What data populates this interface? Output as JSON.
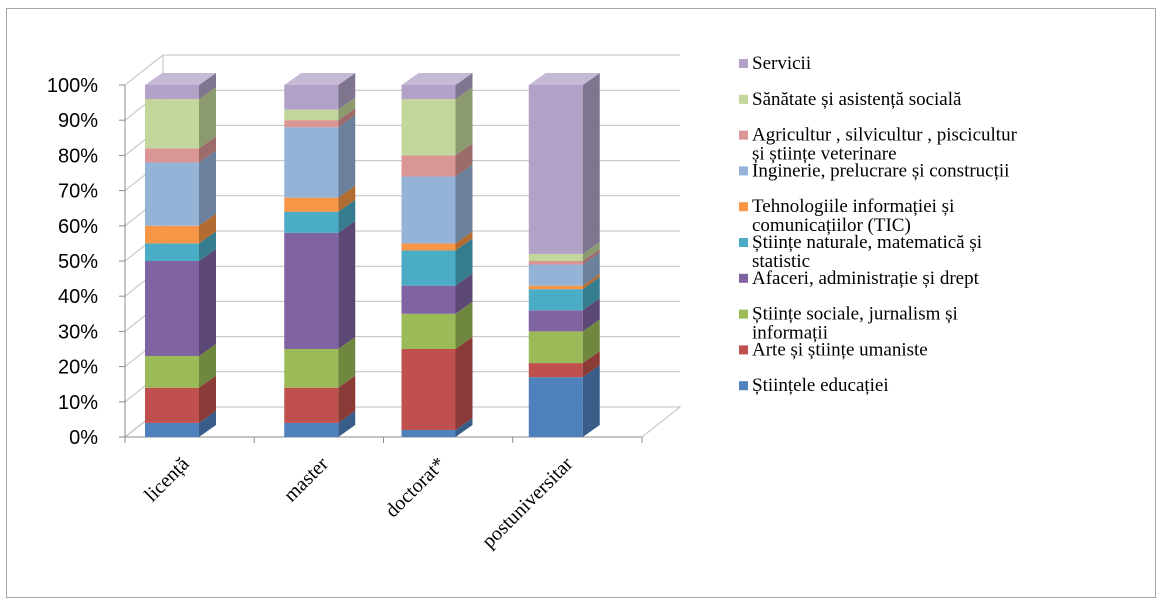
{
  "chart_data": {
    "type": "bar",
    "stacked": true,
    "percent_stacked": true,
    "three_d": true,
    "categories": [
      "licență",
      "master",
      "doctorat*",
      "postuniversitar"
    ],
    "yticks": [
      "0%",
      "10%",
      "20%",
      "30%",
      "40%",
      "50%",
      "60%",
      "70%",
      "80%",
      "90%",
      "100%"
    ],
    "ylim": [
      0,
      100
    ],
    "grid": true,
    "legend_position": "right",
    "series": [
      {
        "name": "Științele educației",
        "color": "#4f81bd",
        "values": [
          4,
          4,
          2,
          17
        ]
      },
      {
        "name": "Arte și științe umaniste",
        "color": "#c0504d",
        "values": [
          10,
          10,
          23,
          4
        ]
      },
      {
        "name": "Științe sociale, jurnalism și informații",
        "color": "#9bbb59",
        "values": [
          9,
          11,
          10,
          9
        ]
      },
      {
        "name": "Afaceri, administrație și drept",
        "color": "#8064a2",
        "values": [
          27,
          33,
          8,
          6
        ]
      },
      {
        "name": "Științe naturale, matematică și statistic",
        "color": "#4bacc6",
        "values": [
          5,
          6,
          10,
          6
        ]
      },
      {
        "name": "Tehnologiile informației și comunicațiilor (TIC)",
        "color": "#f79646",
        "values": [
          5,
          4,
          2,
          1
        ]
      },
      {
        "name": "Inginerie, prelucrare și construcții",
        "color": "#95b3d7",
        "values": [
          18,
          20,
          19,
          6
        ]
      },
      {
        "name": "Agricultur , silvicultur , piscicultur și științe veterinare",
        "color": "#d99694",
        "values": [
          4,
          2,
          6,
          1
        ]
      },
      {
        "name": "Sănătate și asistență socială",
        "color": "#c3d69b",
        "values": [
          14,
          3,
          16,
          2
        ]
      },
      {
        "name": "Servicii",
        "color": "#b2a2c7",
        "values": [
          4,
          7,
          4,
          48
        ]
      }
    ]
  },
  "legend": {
    "entries": [
      {
        "lines": [
          "Servicii"
        ],
        "color": "#b2a2c7"
      },
      {
        "lines": [
          "Sănătate și asistență socială"
        ],
        "color": "#c3d69b"
      },
      {
        "lines": [
          "Agricultur  , silvicultur  , piscicultur",
          "și științe veterinare"
        ],
        "color": "#d99694"
      },
      {
        "lines": [
          "Inginerie, prelucrare și construcții"
        ],
        "color": "#95b3d7"
      },
      {
        "lines": [
          "Tehnologiile informației și",
          "comunicațiilor (TIC)"
        ],
        "color": "#f79646"
      },
      {
        "lines": [
          "Științe naturale, matematică și",
          "statistic"
        ],
        "color": "#4bacc6"
      },
      {
        "lines": [
          "Afaceri, administrație și drept"
        ],
        "color": "#8064a2"
      },
      {
        "lines": [
          "Științe sociale, jurnalism și",
          "informații"
        ],
        "color": "#9bbb59"
      },
      {
        "lines": [
          "Arte și științe umaniste"
        ],
        "color": "#c0504d"
      },
      {
        "lines": [
          "Științele educației"
        ],
        "color": "#4f81bd"
      }
    ]
  }
}
